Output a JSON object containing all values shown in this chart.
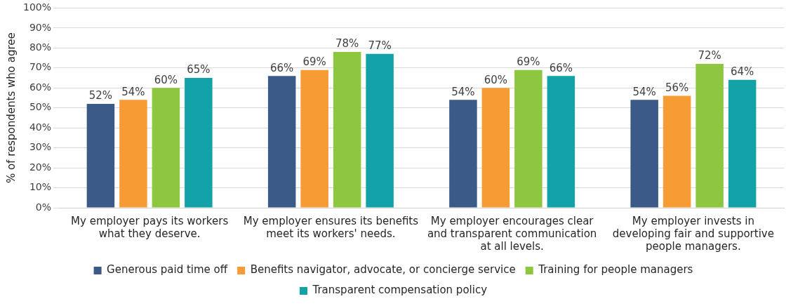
{
  "chart_data": {
    "type": "bar",
    "ylabel": "% of respondents who agree",
    "categories": [
      "My employer pays its workers what they deserve.",
      "My employer ensures its benefits meet its workers' needs.",
      "My employer encourages clear and transparent communication at all levels.",
      "My employer invests in developing fair and supportive people managers."
    ],
    "series": [
      {
        "name": "Generous paid time off",
        "color": "#3b5a88",
        "values": [
          52,
          66,
          54,
          54
        ],
        "value_labels": [
          "52%",
          "66%",
          "54%",
          "54%"
        ]
      },
      {
        "name": "Benefits navigator, advocate, or concierge service",
        "color": "#f79b34",
        "values": [
          54,
          69,
          60,
          56
        ],
        "value_labels": [
          "54%",
          "69%",
          "60%",
          "56%"
        ]
      },
      {
        "name": "Training for people managers",
        "color": "#8dc63f",
        "values": [
          60,
          78,
          69,
          72
        ],
        "value_labels": [
          "60%",
          "78%",
          "69%",
          "72%"
        ]
      },
      {
        "name": "Transparent compensation policy",
        "color": "#12a2a8",
        "values": [
          65,
          77,
          66,
          64
        ],
        "value_labels": [
          "65%",
          "77%",
          "66%",
          "64%"
        ]
      }
    ],
    "ylim": [
      0,
      100
    ],
    "yticks": [
      {
        "value": 0,
        "label": "0%"
      },
      {
        "value": 10,
        "label": "10%"
      },
      {
        "value": 20,
        "label": "20%"
      },
      {
        "value": 30,
        "label": "30%"
      },
      {
        "value": 40,
        "label": "40%"
      },
      {
        "value": 50,
        "label": "50%"
      },
      {
        "value": 60,
        "label": "60%"
      },
      {
        "value": 70,
        "label": "70%"
      },
      {
        "value": 80,
        "label": "80%"
      },
      {
        "value": 90,
        "label": "90%"
      },
      {
        "value": 100,
        "label": "100%"
      }
    ],
    "grid": "y",
    "legend": "bottom"
  }
}
